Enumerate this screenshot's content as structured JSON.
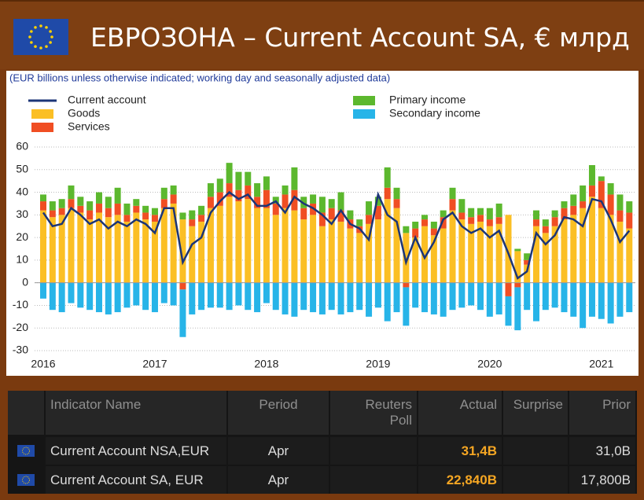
{
  "header": {
    "title": "ЕВРОЗОНА – Current Account SA, € млрд"
  },
  "chart_data": {
    "type": "bar",
    "subtitle": "(EUR billions unless otherwise indicated; working day and seasonally adjusted data)",
    "categories": [
      "2016",
      null,
      null,
      null,
      null,
      null,
      null,
      null,
      null,
      null,
      null,
      null,
      "2017",
      null,
      null,
      null,
      null,
      null,
      null,
      null,
      null,
      null,
      null,
      null,
      "2018",
      null,
      null,
      null,
      null,
      null,
      null,
      null,
      null,
      null,
      null,
      null,
      "2019",
      null,
      null,
      null,
      null,
      null,
      null,
      null,
      null,
      null,
      null,
      null,
      "2020",
      null,
      null,
      null,
      null,
      null,
      null,
      null,
      null,
      null,
      null,
      null,
      "2021",
      null,
      null,
      null
    ],
    "stacked": true,
    "grid": true,
    "ylim": [
      -30,
      60
    ],
    "yticks": [
      -30,
      -20,
      -10,
      0,
      10,
      20,
      30,
      40,
      50,
      60
    ],
    "series": [
      {
        "name": "Current account",
        "type": "line",
        "color": "#1c3577",
        "values": [
          31,
          25,
          26,
          33,
          30,
          26,
          28,
          24,
          27,
          25,
          28,
          26,
          22,
          33,
          33,
          9,
          17,
          20,
          31,
          36,
          40,
          37,
          39,
          34,
          34,
          36,
          31,
          38,
          35,
          33,
          30,
          26,
          32,
          26,
          24,
          19,
          39,
          30,
          27,
          9,
          20,
          11,
          18,
          28,
          31,
          25,
          22,
          24,
          20,
          23,
          13,
          2,
          5,
          22,
          17,
          21,
          29,
          28,
          25,
          37,
          36,
          28,
          18,
          23
        ]
      },
      {
        "name": "Goods",
        "color": "#fbbf24",
        "values": [
          32,
          29,
          30,
          33,
          31,
          28,
          31,
          29,
          30,
          27,
          31,
          28,
          27,
          33,
          35,
          28,
          25,
          27,
          33,
          34,
          38,
          36,
          37,
          33,
          33,
          30,
          33,
          32,
          28,
          30,
          25,
          28,
          27,
          24,
          22,
          26,
          28,
          37,
          33,
          22,
          20,
          25,
          21,
          24,
          32,
          28,
          26,
          27,
          25,
          26,
          30,
          14,
          8,
          25,
          22,
          25,
          28,
          30,
          33,
          38,
          33,
          30,
          27,
          24
        ]
      },
      {
        "name": "Services",
        "color": "#f04e23",
        "values": [
          4,
          3,
          3,
          4,
          3,
          4,
          4,
          4,
          5,
          3,
          3,
          3,
          3,
          4,
          4,
          -3,
          3,
          3,
          5,
          6,
          6,
          5,
          6,
          5,
          8,
          5,
          6,
          9,
          5,
          5,
          6,
          5,
          5,
          4,
          3,
          4,
          6,
          5,
          4,
          -2,
          4,
          3,
          3,
          5,
          5,
          3,
          3,
          3,
          3,
          3,
          -6,
          -2,
          2,
          3,
          3,
          4,
          5,
          4,
          3,
          5,
          12,
          9,
          5,
          7
        ]
      },
      {
        "name": "Primary income",
        "color": "#5cb82e",
        "values": [
          3,
          4,
          4,
          6,
          4,
          4,
          5,
          5,
          7,
          5,
          3,
          3,
          3,
          5,
          4,
          3,
          4,
          4,
          6,
          6,
          9,
          8,
          6,
          6,
          6,
          3,
          4,
          10,
          5,
          4,
          7,
          4,
          8,
          4,
          3,
          6,
          4,
          9,
          5,
          3,
          3,
          2,
          3,
          3,
          5,
          6,
          4,
          3,
          5,
          6,
          0,
          1,
          3,
          4,
          3,
          3,
          3,
          5,
          7,
          9,
          2,
          5,
          7,
          5
        ]
      },
      {
        "name": "Secondary income",
        "color": "#27b4e8",
        "values": [
          -7,
          -12,
          -13,
          -9,
          -11,
          -12,
          -13,
          -14,
          -13,
          -11,
          -10,
          -12,
          -13,
          -9,
          -10,
          -21,
          -14,
          -12,
          -11,
          -11,
          -12,
          -10,
          -12,
          -13,
          -9,
          -12,
          -14,
          -15,
          -12,
          -13,
          -14,
          -12,
          -14,
          -13,
          -12,
          -15,
          -11,
          -17,
          -13,
          -17,
          -11,
          -13,
          -14,
          -15,
          -12,
          -11,
          -10,
          -12,
          -15,
          -14,
          -13,
          -19,
          -12,
          -17,
          -12,
          -11,
          -13,
          -15,
          -20,
          -15,
          -16,
          -18,
          -15,
          -13
        ]
      }
    ]
  },
  "table": {
    "columns": [
      "Indicator Name",
      "Period",
      "Reuters Poll",
      "Actual",
      "Surprise",
      "Prior"
    ],
    "rows": [
      {
        "name": "Current Account NSA,EUR",
        "period": "Apr",
        "actual": "31,4B",
        "prior": "31,0B"
      },
      {
        "name": "Current Account SA, EUR",
        "period": "Apr",
        "actual": "22,840B",
        "prior": "17,800B"
      }
    ]
  }
}
